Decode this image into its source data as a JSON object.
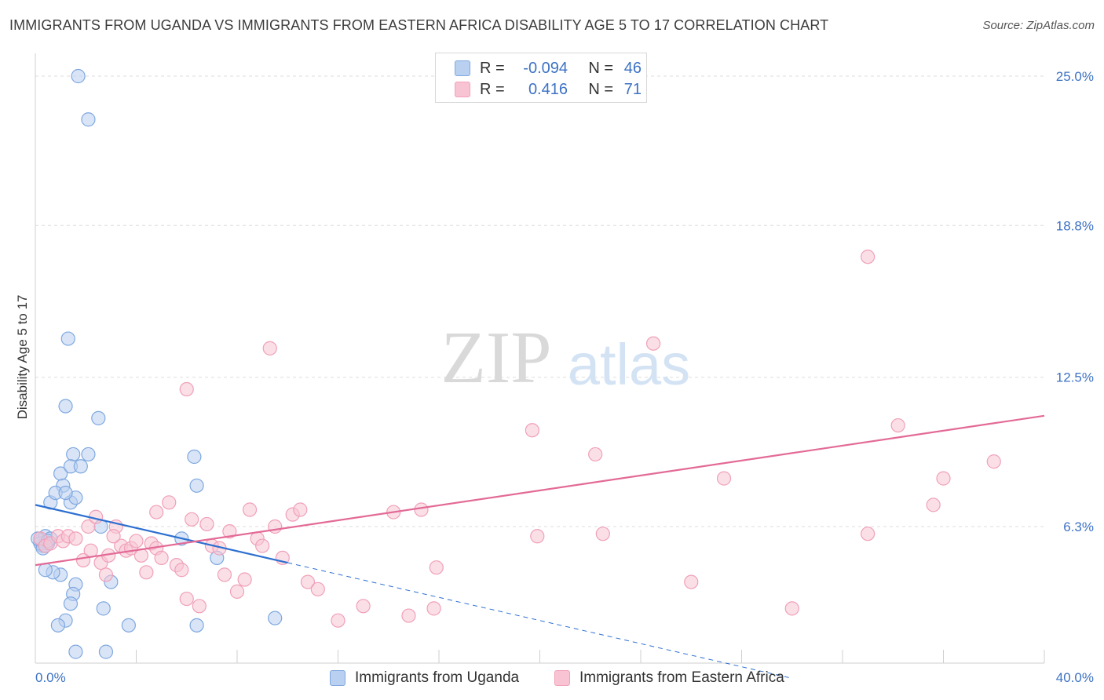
{
  "title": "IMMIGRANTS FROM UGANDA VS IMMIGRANTS FROM EASTERN AFRICA DISABILITY AGE 5 TO 17 CORRELATION CHART",
  "source": "Source: ZipAtlas.com",
  "watermark": {
    "zip": "ZIP",
    "atlas": "atlas"
  },
  "legend": {
    "rows": [
      {
        "r_label": "R =",
        "r_value": "-0.094",
        "n_label": "N =",
        "n_value": "46"
      },
      {
        "r_label": "R =",
        "r_value": "0.416",
        "n_label": "N =",
        "n_value": "71"
      }
    ]
  },
  "bottom_legend": [
    "Immigrants from Uganda",
    "Immigrants from Eastern Africa"
  ],
  "chart_data": {
    "type": "scatter",
    "ylabel": "Disability Age 5 to 17",
    "xlim": [
      0,
      40
    ],
    "ylim": [
      0,
      26
    ],
    "y_ticks": [
      {
        "value": 6.3,
        "label": "6.3%"
      },
      {
        "value": 12.5,
        "label": "12.5%"
      },
      {
        "value": 18.8,
        "label": "18.8%"
      },
      {
        "value": 25.0,
        "label": "25.0%"
      }
    ],
    "x_tick_labels": [
      {
        "value": 0,
        "label": "0.0%"
      },
      {
        "value": 40,
        "label": "40.0%"
      }
    ],
    "grid": true,
    "series": [
      {
        "name": "Immigrants from Uganda",
        "color": "#7fa8e0",
        "fill": "#b9d0f0",
        "line_color": "#2d6fd0",
        "trend": {
          "x0": 0,
          "y0": 7.2,
          "x1": 10,
          "y1": 4.8,
          "dash_to_x": 30,
          "dash_to_y": 0
        },
        "points": [
          [
            0.2,
            5.7
          ],
          [
            0.3,
            5.5
          ],
          [
            0.4,
            5.9
          ],
          [
            0.5,
            5.6
          ],
          [
            0.2,
            5.6
          ],
          [
            0.6,
            5.8
          ],
          [
            0.3,
            5.4
          ],
          [
            0.1,
            5.8
          ],
          [
            0.4,
            5.5
          ],
          [
            0.5,
            5.7
          ],
          [
            1.7,
            25.0
          ],
          [
            2.1,
            23.2
          ],
          [
            1.3,
            14.1
          ],
          [
            1.2,
            11.3
          ],
          [
            2.5,
            10.8
          ],
          [
            1.5,
            9.3
          ],
          [
            2.1,
            9.3
          ],
          [
            1.0,
            8.5
          ],
          [
            1.1,
            8.0
          ],
          [
            1.4,
            8.8
          ],
          [
            1.8,
            8.8
          ],
          [
            0.6,
            7.3
          ],
          [
            0.8,
            7.7
          ],
          [
            1.4,
            7.3
          ],
          [
            1.0,
            4.3
          ],
          [
            0.7,
            4.4
          ],
          [
            1.6,
            7.5
          ],
          [
            1.2,
            7.7
          ],
          [
            2.6,
            6.3
          ],
          [
            3.0,
            4.0
          ],
          [
            1.6,
            3.9
          ],
          [
            1.5,
            3.5
          ],
          [
            1.4,
            3.1
          ],
          [
            2.7,
            2.9
          ],
          [
            3.7,
            2.2
          ],
          [
            1.2,
            2.4
          ],
          [
            0.9,
            2.2
          ],
          [
            1.6,
            1.1
          ],
          [
            2.8,
            1.1
          ],
          [
            6.3,
            9.2
          ],
          [
            6.4,
            8.0
          ],
          [
            6.4,
            2.2
          ],
          [
            5.8,
            5.8
          ],
          [
            7.2,
            5.0
          ],
          [
            9.5,
            2.5
          ],
          [
            0.4,
            4.5
          ]
        ]
      },
      {
        "name": "Immigrants from Eastern Africa",
        "color": "#f0a0b8",
        "fill": "#f8c4d4",
        "line_color": "#e36a96",
        "trend": {
          "x0": 0,
          "y0": 4.7,
          "x1": 40,
          "y1": 10.9
        },
        "points": [
          [
            0.2,
            5.8
          ],
          [
            0.4,
            5.5
          ],
          [
            0.6,
            5.6
          ],
          [
            0.9,
            5.9
          ],
          [
            1.1,
            5.7
          ],
          [
            1.3,
            5.9
          ],
          [
            1.6,
            5.8
          ],
          [
            2.1,
            6.3
          ],
          [
            2.2,
            5.3
          ],
          [
            2.4,
            6.7
          ],
          [
            2.6,
            4.8
          ],
          [
            2.9,
            5.1
          ],
          [
            3.2,
            6.3
          ],
          [
            3.4,
            5.5
          ],
          [
            3.6,
            5.3
          ],
          [
            3.8,
            5.4
          ],
          [
            4.0,
            5.7
          ],
          [
            4.2,
            5.1
          ],
          [
            4.4,
            4.4
          ],
          [
            4.6,
            5.6
          ],
          [
            4.8,
            5.4
          ],
          [
            5.0,
            5.0
          ],
          [
            5.3,
            7.3
          ],
          [
            5.6,
            4.7
          ],
          [
            5.8,
            4.5
          ],
          [
            6.0,
            3.3
          ],
          [
            6.2,
            6.6
          ],
          [
            6.5,
            3.0
          ],
          [
            6.8,
            6.4
          ],
          [
            7.0,
            5.5
          ],
          [
            7.3,
            5.4
          ],
          [
            7.5,
            4.3
          ],
          [
            7.7,
            6.1
          ],
          [
            8.0,
            3.6
          ],
          [
            8.3,
            4.1
          ],
          [
            8.5,
            7.0
          ],
          [
            8.8,
            5.8
          ],
          [
            9.0,
            5.5
          ],
          [
            9.3,
            13.7
          ],
          [
            9.5,
            6.3
          ],
          [
            9.8,
            5.0
          ],
          [
            10.2,
            6.8
          ],
          [
            10.5,
            7.0
          ],
          [
            10.8,
            4.0
          ],
          [
            11.2,
            3.7
          ],
          [
            12.0,
            2.4
          ],
          [
            13.0,
            3.0
          ],
          [
            14.2,
            6.9
          ],
          [
            14.8,
            2.6
          ],
          [
            15.3,
            7.0
          ],
          [
            15.8,
            2.9
          ],
          [
            15.9,
            4.6
          ],
          [
            19.7,
            10.3
          ],
          [
            19.9,
            5.9
          ],
          [
            22.2,
            9.3
          ],
          [
            22.5,
            6.0
          ],
          [
            24.5,
            13.9
          ],
          [
            26.0,
            4.0
          ],
          [
            27.3,
            8.3
          ],
          [
            30.0,
            2.9
          ],
          [
            33.0,
            6.0
          ],
          [
            35.6,
            7.2
          ],
          [
            33.0,
            17.5
          ],
          [
            36.0,
            8.3
          ],
          [
            34.2,
            10.5
          ],
          [
            38.0,
            9.0
          ],
          [
            6.0,
            12.0
          ],
          [
            4.8,
            6.9
          ],
          [
            1.9,
            4.9
          ],
          [
            2.8,
            4.3
          ],
          [
            3.1,
            5.9
          ]
        ]
      }
    ]
  }
}
